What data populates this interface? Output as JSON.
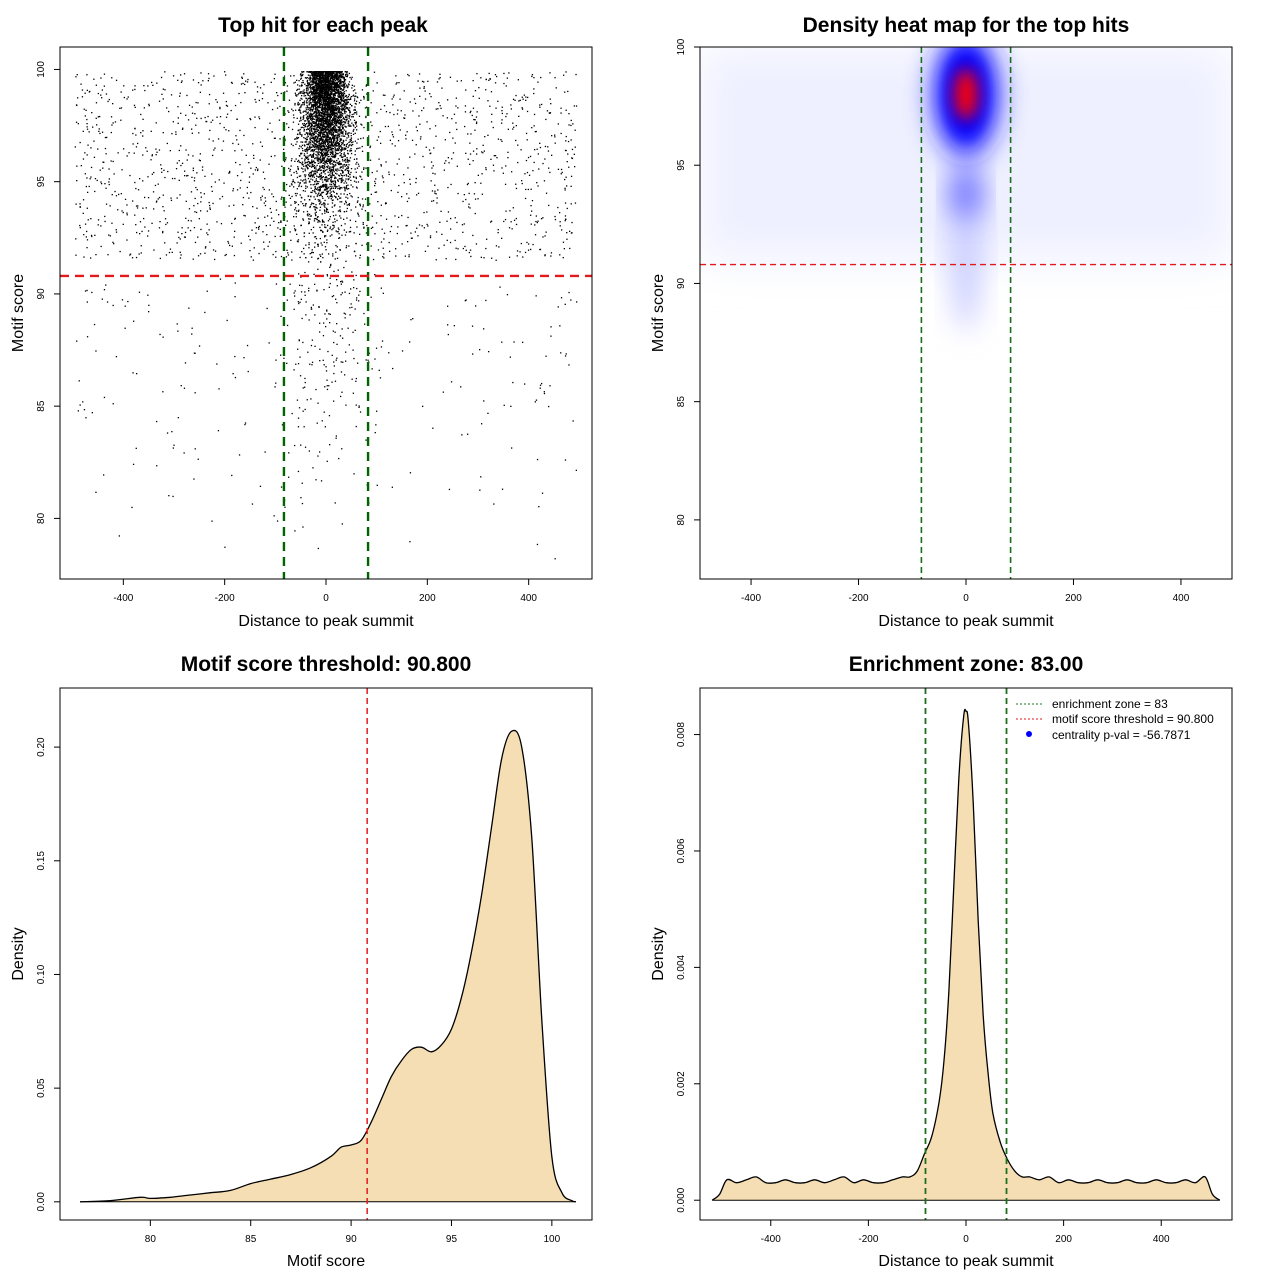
{
  "chart_data": [
    {
      "type": "scatter",
      "title": "Top hit for each peak",
      "xlabel": "Distance to peak summit",
      "ylabel": "Motif score",
      "xlim": [
        -525,
        525
      ],
      "ylim": [
        77.3,
        101.0
      ],
      "xticks": [
        -400,
        -200,
        0,
        200,
        400
      ],
      "yticks": [
        80,
        85,
        90,
        95,
        100
      ],
      "vlines": [
        -83,
        83
      ],
      "hline": 90.8,
      "vline_color": "#006400",
      "hline_color": "#e31a1c",
      "points_description_counts": {
        "central_dense": 4200,
        "background_upper": 1500,
        "background_lower": 230,
        "central_lower": 180
      }
    },
    {
      "type": "heatmap",
      "title": "Density heat map for the top hits",
      "xlabel": "Distance to peak summit",
      "ylabel": "Motif score",
      "xlim": [
        -495,
        495
      ],
      "ylim": [
        77.5,
        100.0
      ],
      "xticks": [
        -400,
        -200,
        0,
        200,
        400
      ],
      "yticks": [
        80,
        85,
        90,
        95,
        100
      ],
      "vlines": [
        -83,
        83
      ],
      "hline": 90.8,
      "peak": {
        "x": 0,
        "y": 98
      },
      "colors": [
        "#ffffff",
        "#0000ff",
        "#ff0000"
      ]
    },
    {
      "type": "area",
      "title": "Motif score threshold: 90.800",
      "xlabel": "Motif score",
      "ylabel": "Density",
      "xlim": [
        75.5,
        102.0
      ],
      "ylim": [
        -0.008,
        0.226
      ],
      "xticks": [
        80,
        85,
        90,
        95,
        100
      ],
      "yticks": [
        "0.00",
        "0.05",
        "0.10",
        "0.15",
        "0.20"
      ],
      "vline": 90.8,
      "fill": "#f5deb3",
      "x": [
        76.5,
        78,
        79.5,
        80,
        81,
        82,
        83,
        84,
        85,
        86,
        87,
        88,
        89,
        89.5,
        90,
        90.5,
        91,
        91.5,
        92,
        92.5,
        93,
        93.5,
        94,
        94.5,
        95,
        95.5,
        96,
        96.5,
        97,
        97.5,
        98,
        98.5,
        99,
        99.5,
        100,
        100.5,
        101,
        101.2
      ],
      "y": [
        0.0,
        0.0005,
        0.002,
        0.0015,
        0.002,
        0.003,
        0.004,
        0.005,
        0.008,
        0.01,
        0.012,
        0.015,
        0.02,
        0.024,
        0.025,
        0.027,
        0.035,
        0.045,
        0.055,
        0.062,
        0.067,
        0.068,
        0.066,
        0.069,
        0.076,
        0.09,
        0.11,
        0.135,
        0.165,
        0.195,
        0.207,
        0.2,
        0.16,
        0.08,
        0.02,
        0.004,
        0.0005,
        0.0
      ]
    },
    {
      "type": "area",
      "title": "Enrichment zone: 83.00",
      "xlabel": "Distance to peak summit",
      "ylabel": "Density",
      "xlim": [
        -545,
        545
      ],
      "ylim": [
        -0.00034,
        0.0088
      ],
      "xticks": [
        -400,
        -200,
        0,
        200,
        400
      ],
      "yticks": [
        "0.000",
        "0.002",
        "0.004",
        "0.006",
        "0.008"
      ],
      "vlines": [
        -83,
        83
      ],
      "fill": "#f5deb3",
      "x": [
        -520,
        -505,
        -490,
        -470,
        -450,
        -430,
        -410,
        -390,
        -370,
        -350,
        -330,
        -310,
        -290,
        -270,
        -250,
        -230,
        -210,
        -190,
        -170,
        -150,
        -130,
        -115,
        -100,
        -85,
        -70,
        -55,
        -45,
        -35,
        -25,
        -15,
        -5,
        0,
        5,
        15,
        25,
        35,
        45,
        55,
        70,
        85,
        100,
        115,
        130,
        150,
        170,
        190,
        210,
        230,
        250,
        270,
        290,
        310,
        330,
        350,
        370,
        390,
        410,
        430,
        450,
        470,
        490,
        505,
        520
      ],
      "y": [
        0.0,
        0.0001,
        0.00035,
        0.0003,
        0.00035,
        0.0004,
        0.0003,
        0.0003,
        0.00035,
        0.0003,
        0.0003,
        0.00035,
        0.0003,
        0.00035,
        0.0004,
        0.0003,
        0.00035,
        0.0003,
        0.0003,
        0.00035,
        0.0004,
        0.0004,
        0.0005,
        0.0008,
        0.0011,
        0.0017,
        0.0024,
        0.0036,
        0.0054,
        0.0072,
        0.0083,
        0.0084,
        0.0082,
        0.0068,
        0.0048,
        0.0032,
        0.0022,
        0.0015,
        0.001,
        0.0007,
        0.0005,
        0.0004,
        0.0004,
        0.00035,
        0.0004,
        0.0003,
        0.00035,
        0.0003,
        0.0003,
        0.00035,
        0.0003,
        0.0003,
        0.00035,
        0.0003,
        0.0003,
        0.00035,
        0.0003,
        0.0003,
        0.00035,
        0.0003,
        0.0004,
        0.0001,
        0.0
      ]
    }
  ],
  "legend": {
    "placement": "top-right",
    "items": [
      {
        "label": "enrichment zone = 83",
        "color": "#1b7a1b",
        "kind": "line"
      },
      {
        "label": "motif score threshold = 90.800",
        "color": "#e31a1c",
        "kind": "line"
      },
      {
        "label": "centrality p-val = -56.7871",
        "color": "#0000ff",
        "kind": "point"
      }
    ]
  }
}
